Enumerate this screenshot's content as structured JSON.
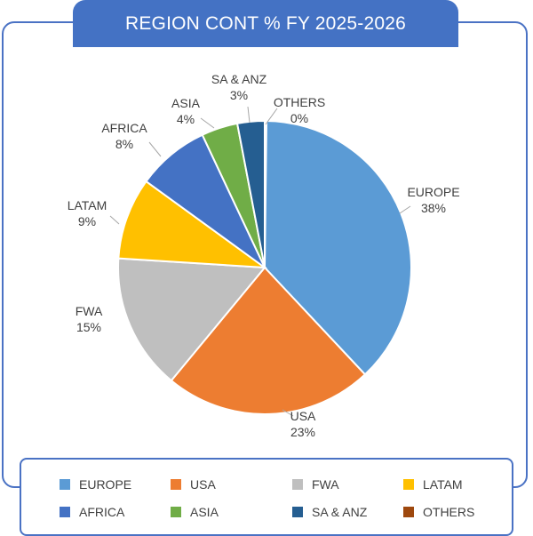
{
  "chart_data": {
    "type": "pie",
    "title": "REGION CONT % FY 2025-2026",
    "categories": [
      "EUROPE",
      "USA",
      "FWA",
      "LATAM",
      "AFRICA",
      "ASIA",
      "SA & ANZ",
      "OTHERS"
    ],
    "values": [
      38,
      23,
      15,
      9,
      8,
      4,
      3,
      0
    ],
    "value_labels": [
      "38%",
      "23%",
      "15%",
      "9%",
      "8%",
      "4%",
      "3%",
      "0%"
    ],
    "colors": [
      "#5b9bd5",
      "#ed7d31",
      "#bfbfbf",
      "#ffc000",
      "#4472c4",
      "#70ad47",
      "#255e91",
      "#9e480e"
    ],
    "legend_position": "bottom"
  }
}
